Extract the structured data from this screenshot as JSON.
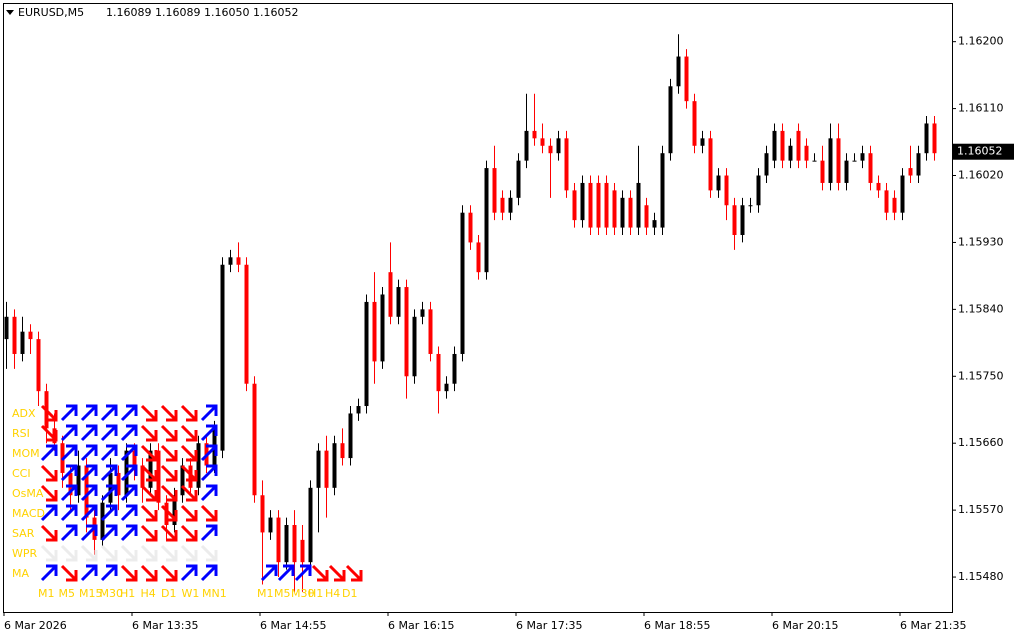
{
  "header": {
    "symbol": "EURUSD,M5",
    "quote": "1.16089 1.16089 1.16050 1.16052"
  },
  "chart_data": {
    "type": "candlestick",
    "up_color": "#000000",
    "down_color": "#ff0000",
    "ylim": [
      1.15433,
      1.16252
    ],
    "yticks": [
      {
        "value": 1.162,
        "label": "1.16200"
      },
      {
        "value": 1.1611,
        "label": "1.16110"
      },
      {
        "value": 1.1602,
        "label": "1.16020"
      },
      {
        "value": 1.1593,
        "label": "1.15930"
      },
      {
        "value": 1.1584,
        "label": "1.15840"
      },
      {
        "value": 1.1575,
        "label": "1.15750"
      },
      {
        "value": 1.1566,
        "label": "1.15660"
      },
      {
        "value": 1.1557,
        "label": "1.15570"
      },
      {
        "value": 1.1548,
        "label": "1.15480"
      }
    ],
    "current_price": 1.16052,
    "categories": [
      "6 Mar 2026",
      null,
      null,
      null,
      null,
      null,
      null,
      null,
      null,
      null,
      null,
      null,
      null,
      null,
      null,
      null,
      "6 Mar 13:35",
      null,
      null,
      null,
      null,
      null,
      null,
      null,
      null,
      null,
      null,
      null,
      null,
      null,
      null,
      null,
      "6 Mar 14:55",
      null,
      null,
      null,
      null,
      null,
      null,
      null,
      null,
      null,
      null,
      null,
      null,
      null,
      null,
      null,
      "6 Mar 16:15",
      null,
      null,
      null,
      null,
      null,
      null,
      null,
      null,
      null,
      null,
      null,
      null,
      null,
      null,
      null,
      "6 Mar 17:35",
      null,
      null,
      null,
      null,
      null,
      null,
      null,
      null,
      null,
      null,
      null,
      null,
      null,
      null,
      null,
      "6 Mar 18:55",
      null,
      null,
      null,
      null,
      null,
      null,
      null,
      null,
      null,
      null,
      null,
      null,
      null,
      null,
      null,
      "6 Mar 20:15",
      null,
      null,
      null,
      null,
      null,
      null,
      null,
      null,
      null,
      null,
      null,
      null,
      null,
      null,
      null,
      "6 Mar 21:35",
      null,
      null,
      null,
      null
    ],
    "candles": [
      [
        1.158,
        1.1585,
        1.1576,
        1.1583
      ],
      [
        1.1583,
        1.1584,
        1.1576,
        1.1578
      ],
      [
        1.1578,
        1.1583,
        1.1577,
        1.1581
      ],
      [
        1.1581,
        1.1582,
        1.1578,
        1.158
      ],
      [
        1.158,
        1.1581,
        1.1571,
        1.1573
      ],
      [
        1.1573,
        1.1574,
        1.1566,
        1.1568
      ],
      [
        1.1568,
        1.157,
        1.1565,
        1.1566
      ],
      [
        1.1566,
        1.1567,
        1.156,
        1.1562
      ],
      [
        1.1562,
        1.1563,
        1.1557,
        1.1559
      ],
      [
        1.1559,
        1.1565,
        1.1558,
        1.1563
      ],
      [
        1.1563,
        1.1564,
        1.1554,
        1.1556
      ],
      [
        1.1556,
        1.1557,
        1.1551,
        1.1553
      ],
      [
        1.1553,
        1.1559,
        1.1552,
        1.1558
      ],
      [
        1.1558,
        1.1564,
        1.1557,
        1.1562
      ],
      [
        1.1562,
        1.1563,
        1.1557,
        1.1559
      ],
      [
        1.1559,
        1.1566,
        1.1558,
        1.1565
      ],
      [
        1.1565,
        1.1566,
        1.1561,
        1.1563
      ],
      [
        1.1563,
        1.1564,
        1.1558,
        1.156
      ],
      [
        1.156,
        1.1566,
        1.1559,
        1.1565
      ],
      [
        1.1565,
        1.1566,
        1.1557,
        1.1558
      ],
      [
        1.1558,
        1.1559,
        1.1553,
        1.1555
      ],
      [
        1.1555,
        1.156,
        1.1554,
        1.1559
      ],
      [
        1.1559,
        1.1564,
        1.1558,
        1.1563
      ],
      [
        1.1563,
        1.1564,
        1.1559,
        1.156
      ],
      [
        1.156,
        1.1567,
        1.1559,
        1.1566
      ],
      [
        1.1566,
        1.1567,
        1.1562,
        1.1563
      ],
      [
        1.1563,
        1.1569,
        1.1562,
        1.1568
      ],
      [
        1.1565,
        1.1591,
        1.1564,
        1.159
      ],
      [
        1.159,
        1.1592,
        1.1589,
        1.1591
      ],
      [
        1.1591,
        1.1593,
        1.1589,
        1.159
      ],
      [
        1.159,
        1.1591,
        1.1573,
        1.1574
      ],
      [
        1.1574,
        1.1575,
        1.1558,
        1.1559
      ],
      [
        1.1559,
        1.1561,
        1.1547,
        1.1554
      ],
      [
        1.1554,
        1.1557,
        1.1553,
        1.1556
      ],
      [
        1.1556,
        1.1557,
        1.1548,
        1.155
      ],
      [
        1.155,
        1.1556,
        1.1549,
        1.1555
      ],
      [
        1.1555,
        1.1557,
        1.1546,
        1.155
      ],
      [
        1.1553,
        1.1555,
        1.1546,
        1.155
      ],
      [
        1.155,
        1.1561,
        1.1549,
        1.156
      ],
      [
        1.156,
        1.1566,
        1.1554,
        1.1565
      ],
      [
        1.1565,
        1.1567,
        1.1556,
        1.156
      ],
      [
        1.156,
        1.1567,
        1.1559,
        1.1566
      ],
      [
        1.1566,
        1.1568,
        1.1563,
        1.1564
      ],
      [
        1.1564,
        1.1571,
        1.1563,
        1.157
      ],
      [
        1.157,
        1.1572,
        1.1569,
        1.1571
      ],
      [
        1.1571,
        1.1586,
        1.157,
        1.1585
      ],
      [
        1.1585,
        1.1589,
        1.1574,
        1.1577
      ],
      [
        1.1577,
        1.1587,
        1.1576,
        1.1586
      ],
      [
        1.1589,
        1.1593,
        1.1582,
        1.1583
      ],
      [
        1.1583,
        1.1588,
        1.1582,
        1.1587
      ],
      [
        1.1587,
        1.1588,
        1.1572,
        1.1575
      ],
      [
        1.1575,
        1.1584,
        1.1574,
        1.1583
      ],
      [
        1.1583,
        1.1585,
        1.1582,
        1.1584
      ],
      [
        1.1584,
        1.1585,
        1.1577,
        1.1578
      ],
      [
        1.1578,
        1.1579,
        1.157,
        1.1573
      ],
      [
        1.1573,
        1.1575,
        1.1572,
        1.1574
      ],
      [
        1.1574,
        1.1579,
        1.1573,
        1.1578
      ],
      [
        1.1578,
        1.1598,
        1.1577,
        1.1597
      ],
      [
        1.1597,
        1.1598,
        1.1592,
        1.1593
      ],
      [
        1.1593,
        1.1594,
        1.1588,
        1.1589
      ],
      [
        1.1589,
        1.1604,
        1.1588,
        1.1603
      ],
      [
        1.1603,
        1.1606,
        1.1596,
        1.1597
      ],
      [
        1.1599,
        1.16,
        1.1596,
        1.1597
      ],
      [
        1.1597,
        1.16,
        1.1596,
        1.1599
      ],
      [
        1.1599,
        1.1605,
        1.1598,
        1.1604
      ],
      [
        1.1604,
        1.1613,
        1.1603,
        1.1608
      ],
      [
        1.1608,
        1.1613,
        1.1606,
        1.1607
      ],
      [
        1.1607,
        1.1609,
        1.1605,
        1.1606
      ],
      [
        1.1606,
        1.1607,
        1.1599,
        1.1605
      ],
      [
        1.1605,
        1.1608,
        1.1604,
        1.1607
      ],
      [
        1.1607,
        1.1608,
        1.1599,
        1.16
      ],
      [
        1.16,
        1.1601,
        1.1595,
        1.1596
      ],
      [
        1.1596,
        1.1602,
        1.1595,
        1.1601
      ],
      [
        1.1601,
        1.1602,
        1.1594,
        1.1595
      ],
      [
        1.1601,
        1.1602,
        1.1594,
        1.1595
      ],
      [
        1.1601,
        1.1602,
        1.1594,
        1.1595
      ],
      [
        1.16,
        1.1601,
        1.1594,
        1.1595
      ],
      [
        1.1595,
        1.16,
        1.1594,
        1.1599
      ],
      [
        1.1599,
        1.16,
        1.1594,
        1.1595
      ],
      [
        1.1595,
        1.1606,
        1.1594,
        1.1601
      ],
      [
        1.1598,
        1.1599,
        1.1594,
        1.1595
      ],
      [
        1.1595,
        1.1597,
        1.1594,
        1.1596
      ],
      [
        1.1595,
        1.1606,
        1.1594,
        1.1605
      ],
      [
        1.1605,
        1.1615,
        1.1604,
        1.1614
      ],
      [
        1.1614,
        1.1621,
        1.1613,
        1.1618
      ],
      [
        1.1618,
        1.1619,
        1.1611,
        1.1612
      ],
      [
        1.1612,
        1.1613,
        1.1605,
        1.1606
      ],
      [
        1.1606,
        1.1608,
        1.1605,
        1.1607
      ],
      [
        1.1607,
        1.1608,
        1.1599,
        1.16
      ],
      [
        1.16,
        1.1603,
        1.1599,
        1.1602
      ],
      [
        1.1602,
        1.1603,
        1.1596,
        1.1598
      ],
      [
        1.1598,
        1.1599,
        1.1592,
        1.1594
      ],
      [
        1.1594,
        1.1599,
        1.1593,
        1.1598
      ],
      [
        1.1598,
        1.1599,
        1.1597,
        1.1598
      ],
      [
        1.1598,
        1.1603,
        1.1597,
        1.1602
      ],
      [
        1.1602,
        1.1606,
        1.1601,
        1.1605
      ],
      [
        1.1604,
        1.1609,
        1.1603,
        1.1608
      ],
      [
        1.1608,
        1.1609,
        1.1603,
        1.1604
      ],
      [
        1.1604,
        1.1607,
        1.1603,
        1.1606
      ],
      [
        1.1608,
        1.1609,
        1.1603,
        1.1604
      ],
      [
        1.1606,
        1.1607,
        1.1603,
        1.1604
      ],
      [
        1.1604,
        1.1605,
        1.1604,
        1.1604
      ],
      [
        1.1604,
        1.1606,
        1.16,
        1.1601
      ],
      [
        1.1601,
        1.1609,
        1.16,
        1.1607
      ],
      [
        1.1607,
        1.1609,
        1.16,
        1.1601
      ],
      [
        1.1601,
        1.1605,
        1.16,
        1.1604
      ],
      [
        1.1604,
        1.1605,
        1.1604,
        1.1604
      ],
      [
        1.1604,
        1.1606,
        1.1603,
        1.1605
      ],
      [
        1.1605,
        1.1606,
        1.16,
        1.1601
      ],
      [
        1.1601,
        1.1602,
        1.1599,
        1.16
      ],
      [
        1.16,
        1.1601,
        1.1596,
        1.1597
      ],
      [
        1.1599,
        1.16,
        1.1596,
        1.1597
      ],
      [
        1.1597,
        1.1603,
        1.1596,
        1.1602
      ],
      [
        1.1603,
        1.1606,
        1.1601,
        1.1602
      ],
      [
        1.1602,
        1.1606,
        1.1601,
        1.1605
      ],
      [
        1.1605,
        1.161,
        1.1604,
        1.1609
      ],
      [
        1.1609,
        1.161,
        1.1604,
        1.1605
      ]
    ]
  },
  "indicator_panel": {
    "up_color": "#0000ff",
    "down_color": "#ff0000",
    "neutral_color": "#ececec",
    "label_color": "#ffd200",
    "columns": [
      "M1",
      "M5",
      "M15",
      "M30",
      "H1",
      "H4",
      "D1",
      "W1",
      "MN1"
    ],
    "rows": [
      {
        "label": "ADX",
        "signals": [
          "down",
          "up",
          "up",
          "up",
          "up",
          "down",
          "down",
          "down",
          "up"
        ]
      },
      {
        "label": "RSI",
        "signals": [
          "down",
          "up",
          "up",
          "up",
          "up",
          "down",
          "down",
          "down",
          "up"
        ]
      },
      {
        "label": "MOM",
        "signals": [
          "up",
          "up",
          "up",
          "up",
          "up",
          "down",
          "down",
          "down",
          "up"
        ]
      },
      {
        "label": "CCI",
        "signals": [
          "down",
          "up",
          "up",
          "up",
          "up",
          "down",
          "down",
          "down",
          "up"
        ]
      },
      {
        "label": "OsMA",
        "signals": [
          "down",
          "up",
          "up",
          "up",
          "up",
          "down",
          "down",
          "down",
          "up"
        ]
      },
      {
        "label": "MACD",
        "signals": [
          "up",
          "up",
          "up",
          "up",
          "up",
          "down",
          "down",
          "down",
          "down"
        ]
      },
      {
        "label": "SAR",
        "signals": [
          "down",
          "up",
          "up",
          "up",
          "up",
          "down",
          "down",
          "down",
          "up"
        ]
      },
      {
        "label": "WPR",
        "signals": [
          "neutral",
          "neutral",
          "neutral",
          "neutral",
          "neutral",
          "neutral",
          "neutral",
          "neutral",
          "neutral"
        ]
      },
      {
        "label": "MA",
        "signals": [
          "up",
          "down",
          "up",
          "up",
          "down",
          "down",
          "down",
          "up",
          "up"
        ]
      }
    ]
  },
  "ma_panel": {
    "columns": [
      "M1",
      "M5",
      "M30",
      "H1",
      "H4",
      "D1"
    ],
    "signals": [
      "up",
      "up",
      "up",
      "down",
      "down",
      "down"
    ]
  }
}
